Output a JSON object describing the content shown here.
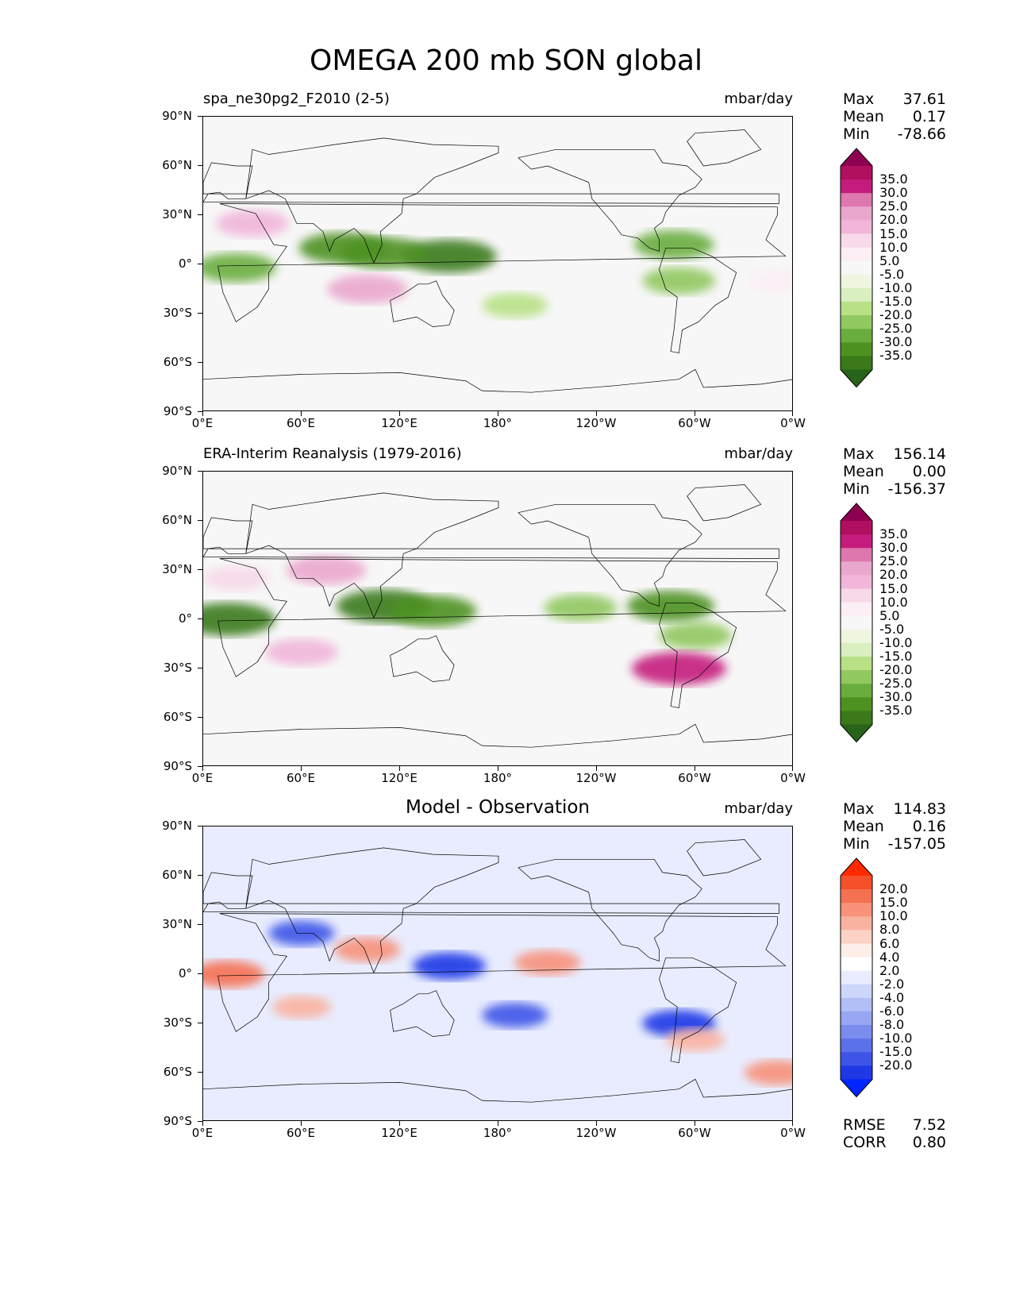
{
  "figure": {
    "title": "OMEGA 200 mb SON global"
  },
  "axes": {
    "lat_ticks": [
      "90°N",
      "60°N",
      "30°N",
      "0°",
      "30°S",
      "60°S",
      "90°S"
    ],
    "lon_ticks": [
      "0°E",
      "60°E",
      "120°E",
      "180°",
      "120°W",
      "60°W",
      "0°W"
    ]
  },
  "panels": [
    {
      "title_left": "spa_ne30pg2_F2010 (2-5)",
      "title_center": "",
      "units": "mbar/day",
      "stats": {
        "max_label": "Max",
        "max": "37.61",
        "mean_label": "Mean",
        "mean": "0.17",
        "min_label": "Min",
        "min": "-78.66"
      },
      "colorbar": {
        "labels": [
          "35.0",
          "30.0",
          "25.0",
          "20.0",
          "15.0",
          "10.0",
          "5.0",
          "-5.0",
          "-10.0",
          "-15.0",
          "-20.0",
          "-25.0",
          "-30.0",
          "-35.0"
        ],
        "colors": [
          "#8e0152",
          "#b0105f",
          "#c51b7d",
          "#de77ae",
          "#eaa7cd",
          "#f1b6da",
          "#f7d9ea",
          "#fbeef5",
          "#f7f7f7",
          "#eef5e0",
          "#d9efc0",
          "#b8e186",
          "#91c860",
          "#6aad3f",
          "#4d9221",
          "#3a7a1a",
          "#276419"
        ]
      },
      "metrics": null
    },
    {
      "title_left": "ERA-Interim Reanalysis (1979-2016)",
      "title_center": "",
      "units": "mbar/day",
      "stats": {
        "max_label": "Max",
        "max": "156.14",
        "mean_label": "Mean",
        "mean": "0.00",
        "min_label": "Min",
        "min": "-156.37"
      },
      "colorbar": {
        "labels": [
          "35.0",
          "30.0",
          "25.0",
          "20.0",
          "15.0",
          "10.0",
          "5.0",
          "-5.0",
          "-10.0",
          "-15.0",
          "-20.0",
          "-25.0",
          "-30.0",
          "-35.0"
        ],
        "colors": [
          "#8e0152",
          "#b0105f",
          "#c51b7d",
          "#de77ae",
          "#eaa7cd",
          "#f1b6da",
          "#f7d9ea",
          "#fbeef5",
          "#f7f7f7",
          "#eef5e0",
          "#d9efc0",
          "#b8e186",
          "#91c860",
          "#6aad3f",
          "#4d9221",
          "#3a7a1a",
          "#276419"
        ]
      },
      "metrics": null
    },
    {
      "title_left": "",
      "title_center": "Model - Observation",
      "units": "mbar/day",
      "stats": {
        "max_label": "Max",
        "max": "114.83",
        "mean_label": "Mean",
        "mean": "0.16",
        "min_label": "Min",
        "min": "-157.05"
      },
      "colorbar": {
        "labels": [
          "20.0",
          "15.0",
          "10.0",
          "8.0",
          "6.0",
          "4.0",
          "2.0",
          "-2.0",
          "-4.0",
          "-6.0",
          "-8.0",
          "-10.0",
          "-15.0",
          "-20.0"
        ],
        "colors": [
          "#ff2a00",
          "#f4502a",
          "#f57152",
          "#f8927a",
          "#fab2a0",
          "#fcd2c4",
          "#feeee8",
          "#ffffff",
          "#e8ecfe",
          "#cdd6fb",
          "#b2bef6",
          "#96a6f2",
          "#7a8cee",
          "#5c70ea",
          "#3e54e8",
          "#1e38e6",
          "#0025ff"
        ]
      },
      "metrics": {
        "rmse_label": "RMSE",
        "rmse": "7.52",
        "corr_label": "CORR",
        "corr": "0.80"
      }
    }
  ],
  "chart_data": [
    {
      "type": "heatmap",
      "title": "spa_ne30pg2_F2010 (2-5)",
      "variable": "OMEGA 200 mb SON",
      "units": "mbar/day",
      "projection": "global lat-lon, 0°E to 360°",
      "xlim": [
        0,
        360
      ],
      "ylim": [
        -90,
        90
      ],
      "levels": [
        -35,
        -30,
        -25,
        -20,
        -15,
        -10,
        -5,
        5,
        10,
        15,
        20,
        25,
        30,
        35
      ],
      "colormap": "PiYG (pink = positive/descent, green = negative/ascent)",
      "max": 37.61,
      "mean": 0.17,
      "min": -78.66,
      "features": [
        {
          "lon": 150,
          "lat": 5,
          "value": -35
        },
        {
          "lon": 110,
          "lat": 7,
          "value": -30
        },
        {
          "lon": 85,
          "lat": 10,
          "value": -30
        },
        {
          "lon": 20,
          "lat": -2,
          "value": -25
        },
        {
          "lon": 287,
          "lat": 12,
          "value": -25
        },
        {
          "lon": 290,
          "lat": -10,
          "value": -20
        },
        {
          "lon": 190,
          "lat": -25,
          "value": -15
        },
        {
          "lon": 100,
          "lat": -15,
          "value": 25
        },
        {
          "lon": 30,
          "lat": 25,
          "value": 20
        },
        {
          "lon": 350,
          "lat": -10,
          "value": 10
        }
      ]
    },
    {
      "type": "heatmap",
      "title": "ERA-Interim Reanalysis (1979-2016)",
      "variable": "OMEGA 200 mb SON",
      "units": "mbar/day",
      "xlim": [
        0,
        360
      ],
      "ylim": [
        -90,
        90
      ],
      "levels": [
        -35,
        -30,
        -25,
        -20,
        -15,
        -10,
        -5,
        5,
        10,
        15,
        20,
        25,
        30,
        35
      ],
      "colormap": "PiYG",
      "max": 156.14,
      "mean": 0.0,
      "min": -156.37,
      "features": [
        {
          "lon": 15,
          "lat": 0,
          "value": -35
        },
        {
          "lon": 110,
          "lat": 8,
          "value": -35
        },
        {
          "lon": 140,
          "lat": 5,
          "value": -30
        },
        {
          "lon": 230,
          "lat": 7,
          "value": -20
        },
        {
          "lon": 285,
          "lat": 8,
          "value": -30
        },
        {
          "lon": 300,
          "lat": -10,
          "value": -20
        },
        {
          "lon": 290,
          "lat": -30,
          "value": 35
        },
        {
          "lon": 60,
          "lat": -20,
          "value": 20
        },
        {
          "lon": 75,
          "lat": 30,
          "value": 25
        },
        {
          "lon": 20,
          "lat": 25,
          "value": 15
        }
      ]
    },
    {
      "type": "heatmap",
      "title": "Model - Observation",
      "variable": "OMEGA 200 mb SON difference",
      "units": "mbar/day",
      "xlim": [
        0,
        360
      ],
      "ylim": [
        -90,
        90
      ],
      "levels": [
        -20,
        -15,
        -10,
        -8,
        -6,
        -4,
        -2,
        2,
        4,
        6,
        8,
        10,
        15,
        20
      ],
      "colormap": "bwr (red = positive, blue = negative)",
      "max": 114.83,
      "mean": 0.16,
      "min": -157.05,
      "rmse": 7.52,
      "corr": 0.8,
      "features": [
        {
          "lon": 150,
          "lat": 5,
          "value": -20
        },
        {
          "lon": 60,
          "lat": 25,
          "value": -15
        },
        {
          "lon": 210,
          "lat": 7,
          "value": 15
        },
        {
          "lon": 190,
          "lat": -25,
          "value": -15
        },
        {
          "lon": 15,
          "lat": 0,
          "value": 20
        },
        {
          "lon": 100,
          "lat": 15,
          "value": 15
        },
        {
          "lon": 290,
          "lat": -30,
          "value": -20
        },
        {
          "lon": 350,
          "lat": -60,
          "value": 15
        },
        {
          "lon": 60,
          "lat": -20,
          "value": 10
        },
        {
          "lon": 300,
          "lat": -40,
          "value": 10
        }
      ]
    }
  ]
}
